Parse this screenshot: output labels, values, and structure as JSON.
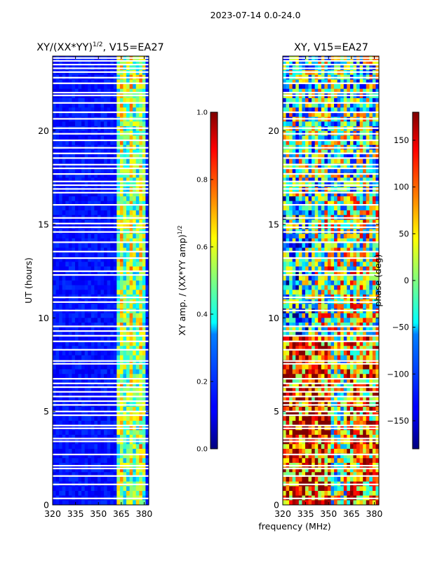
{
  "figure": {
    "suptitle": "2023-07-14 0.0-24.0",
    "xlabel": "frequency (MHz)"
  },
  "chart_data": [
    {
      "type": "heatmap",
      "title_main": "XY/(XX*YY)",
      "title_sup": "1/2",
      "title_tail": ", V15=EA27",
      "xlabel": "frequency (MHz)",
      "ylabel": "UT (hours)",
      "xlim": [
        320,
        383
      ],
      "ylim": [
        0,
        24
      ],
      "xticks": [
        320,
        335,
        350,
        365,
        380
      ],
      "yticks": [
        0,
        5,
        10,
        15,
        20
      ],
      "colorbar": {
        "label_main": "XY amp. / (XX*YY amp)",
        "label_sup": "1/2",
        "range": [
          0.0,
          1.0
        ],
        "ticks": [
          "0.0",
          "0.2",
          "0.4",
          "0.6",
          "0.8",
          "1.0"
        ]
      },
      "active_band_mhz": [
        361,
        381
      ],
      "flagged_hours": [
        0.35,
        1.1,
        1.55,
        1.95,
        2.1,
        2.7,
        3.4,
        3.55,
        4.1,
        4.25,
        4.8,
        5.0,
        5.35,
        5.55,
        5.8,
        6.05,
        6.3,
        6.5,
        6.75,
        7.55,
        7.7,
        8.3,
        8.75,
        9.05,
        9.3,
        9.55,
        10.4,
        10.85,
        11.1,
        12.3,
        12.5,
        13.2,
        13.55,
        14.05,
        14.6,
        14.85,
        15.05,
        15.35,
        16.05,
        16.7,
        16.9,
        17.1,
        17.3,
        17.7,
        18.0,
        18.2,
        18.55,
        18.8,
        19.1,
        19.5,
        19.85,
        20.15,
        20.65,
        21.0,
        21.5,
        21.9,
        22.05,
        22.55,
        22.85,
        23.15,
        23.35,
        23.55,
        23.75,
        23.9
      ]
    },
    {
      "type": "heatmap",
      "title": "XY, V15=EA27",
      "xlabel": "frequency (MHz)",
      "ylabel": "",
      "xlim": [
        320,
        383
      ],
      "ylim": [
        0,
        24
      ],
      "xticks": [
        320,
        335,
        350,
        365,
        380
      ],
      "yticks": [
        0,
        5,
        10,
        15,
        20
      ],
      "colorbar": {
        "label": "phase (deg)",
        "range": [
          -180,
          180
        ],
        "ticks": [
          "150",
          "100",
          "50",
          "0",
          "−50",
          "−100",
          "−150"
        ],
        "tick_values": [
          150,
          100,
          50,
          0,
          -50,
          -100,
          -150
        ]
      },
      "flagged_hours": [
        0.35,
        1.1,
        1.55,
        1.95,
        2.1,
        2.7,
        3.4,
        3.55,
        4.1,
        4.25,
        4.8,
        5.0,
        5.35,
        5.55,
        5.8,
        6.05,
        6.3,
        6.5,
        6.75,
        7.55,
        7.7,
        8.3,
        8.75,
        9.05,
        9.3,
        9.55,
        10.4,
        10.85,
        11.1,
        12.3,
        12.5,
        13.2,
        13.55,
        14.05,
        14.6,
        14.85,
        15.05,
        15.35,
        16.05,
        16.7,
        16.9,
        17.1,
        17.3,
        17.7,
        18.0,
        18.2,
        18.55,
        18.8,
        19.1,
        19.5,
        19.85,
        20.15,
        20.65,
        21.0,
        21.5,
        21.9,
        22.05,
        22.55,
        22.85,
        23.15,
        23.35,
        23.55,
        23.75,
        23.9
      ]
    }
  ]
}
